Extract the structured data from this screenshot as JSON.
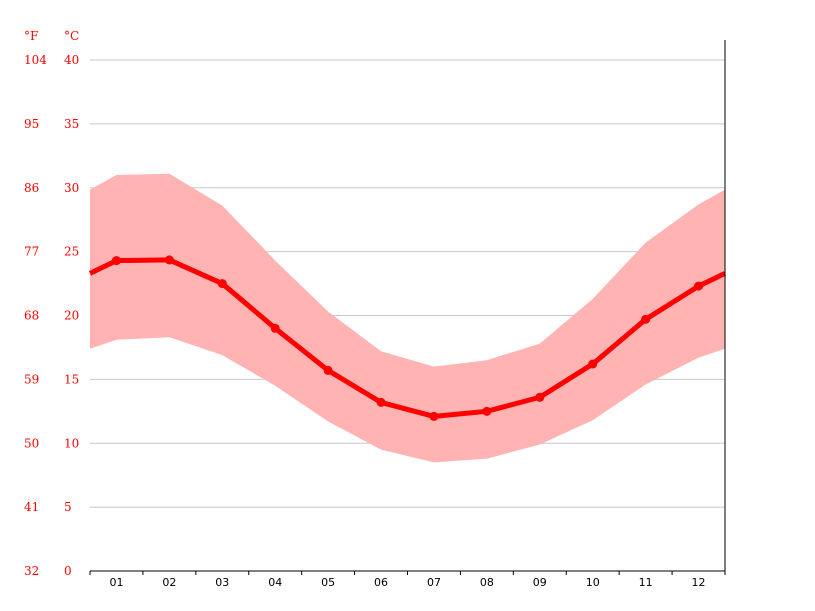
{
  "chart_data": {
    "type": "line",
    "title": "",
    "xlabel": "",
    "ylabel": "",
    "unit_labels": {
      "fahrenheit": "°F",
      "celsius": "°C"
    },
    "categories": [
      "01",
      "02",
      "03",
      "04",
      "05",
      "06",
      "07",
      "08",
      "09",
      "10",
      "11",
      "12"
    ],
    "ylim": [
      0,
      40
    ],
    "y_ticks_celsius": [
      0,
      5,
      10,
      15,
      20,
      25,
      30,
      35,
      40
    ],
    "y_ticks_fahrenheit": [
      32,
      41,
      50,
      59,
      68,
      77,
      86,
      95,
      104
    ],
    "grid": true,
    "series": [
      {
        "role": "mean",
        "values": [
          24.3,
          24.35,
          22.5,
          19.0,
          15.7,
          13.2,
          12.1,
          12.5,
          13.6,
          16.2,
          19.7,
          22.3
        ],
        "color": "#ff0000"
      },
      {
        "role": "max",
        "values": [
          31.0,
          31.1,
          28.6,
          24.3,
          20.3,
          17.2,
          16.0,
          16.5,
          17.8,
          21.3,
          25.7,
          28.7
        ],
        "color": "#ffb3b3"
      },
      {
        "role": "min",
        "values": [
          18.1,
          18.3,
          16.9,
          14.5,
          11.7,
          9.5,
          8.5,
          8.8,
          9.9,
          11.8,
          14.6,
          16.7
        ],
        "color": "#ffb3b3"
      }
    ]
  }
}
